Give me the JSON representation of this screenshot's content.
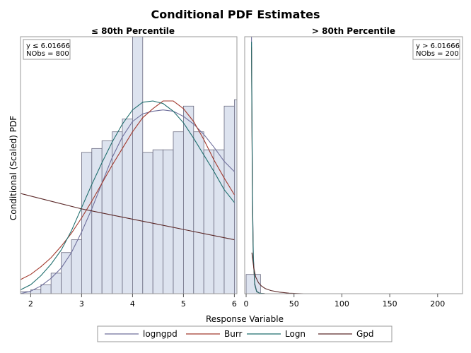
{
  "chart_data": {
    "type": "histogram-with-density-curves",
    "title": "Conditional PDF Estimates",
    "ylabel": "Conditional (Scaled) PDF",
    "xlabel": "Response Variable",
    "colors": {
      "logngpd": "#6f6f9c",
      "Burr": "#a23a2e",
      "Logn": "#1f6e6e",
      "Gpd": "#5c2a2a",
      "bar_fill": "#dde3ef",
      "bar_stroke": "#6b6b80"
    },
    "legend": {
      "position": "bottom",
      "entries": [
        {
          "name": "logngpd",
          "color": "#6f6f9c"
        },
        {
          "name": "Burr",
          "color": "#a23a2e"
        },
        {
          "name": "Logn",
          "color": "#1f6e6e"
        },
        {
          "name": "Gpd",
          "color": "#5c2a2a"
        }
      ]
    },
    "panels": [
      {
        "title": "≤ 80th Percentile",
        "inset": [
          "y ≤ 6.01666",
          "NObs = 800"
        ],
        "xlim": [
          1.8,
          6.05
        ],
        "ylim": [
          0,
          10
        ],
        "xticks": [
          2,
          3,
          4,
          5,
          6
        ],
        "bin_width": 0.2,
        "bins": [
          {
            "x": 1.9,
            "y": 0.08
          },
          {
            "x": 2.1,
            "y": 0.15
          },
          {
            "x": 2.3,
            "y": 0.35
          },
          {
            "x": 2.5,
            "y": 0.8
          },
          {
            "x": 2.7,
            "y": 1.6
          },
          {
            "x": 2.9,
            "y": 2.1
          },
          {
            "x": 3.1,
            "y": 5.5
          },
          {
            "x": 3.3,
            "y": 5.65
          },
          {
            "x": 3.5,
            "y": 5.95
          },
          {
            "x": 3.7,
            "y": 6.3
          },
          {
            "x": 3.9,
            "y": 6.8
          },
          {
            "x": 4.1,
            "y": 10.0
          },
          {
            "x": 4.3,
            "y": 5.5
          },
          {
            "x": 4.5,
            "y": 5.6
          },
          {
            "x": 4.7,
            "y": 5.6
          },
          {
            "x": 4.9,
            "y": 6.3
          },
          {
            "x": 5.1,
            "y": 7.3
          },
          {
            "x": 5.3,
            "y": 6.3
          },
          {
            "x": 5.5,
            "y": 5.6
          },
          {
            "x": 5.7,
            "y": 5.6
          },
          {
            "x": 5.9,
            "y": 7.3
          },
          {
            "x": 6.1,
            "y": 7.55
          }
        ],
        "curves": [
          {
            "name": "logngpd",
            "points": [
              [
                1.8,
                0.0
              ],
              [
                2.0,
                0.1
              ],
              [
                2.2,
                0.3
              ],
              [
                2.4,
                0.6
              ],
              [
                2.6,
                1.0
              ],
              [
                2.8,
                1.6
              ],
              [
                3.0,
                2.4
              ],
              [
                3.2,
                3.3
              ],
              [
                3.4,
                4.3
              ],
              [
                3.6,
                5.3
              ],
              [
                3.8,
                6.1
              ],
              [
                4.0,
                6.7
              ],
              [
                4.2,
                7.0
              ],
              [
                4.4,
                7.1
              ],
              [
                4.6,
                7.15
              ],
              [
                4.8,
                7.1
              ],
              [
                5.0,
                6.9
              ],
              [
                5.2,
                6.6
              ],
              [
                5.4,
                6.2
              ],
              [
                5.6,
                5.7
              ],
              [
                5.8,
                5.15
              ],
              [
                6.0,
                4.75
              ]
            ]
          },
          {
            "name": "Burr",
            "points": [
              [
                1.8,
                0.55
              ],
              [
                2.0,
                0.75
              ],
              [
                2.2,
                1.05
              ],
              [
                2.4,
                1.4
              ],
              [
                2.6,
                1.85
              ],
              [
                2.8,
                2.35
              ],
              [
                3.0,
                2.95
              ],
              [
                3.2,
                3.6
              ],
              [
                3.4,
                4.3
              ],
              [
                3.6,
                5.0
              ],
              [
                3.8,
                5.65
              ],
              [
                4.0,
                6.3
              ],
              [
                4.2,
                6.85
              ],
              [
                4.4,
                7.2
              ],
              [
                4.6,
                7.5
              ],
              [
                4.8,
                7.5
              ],
              [
                5.0,
                7.2
              ],
              [
                5.2,
                6.7
              ],
              [
                5.4,
                6.0
              ],
              [
                5.6,
                5.2
              ],
              [
                5.8,
                4.5
              ],
              [
                6.0,
                3.85
              ]
            ]
          },
          {
            "name": "Logn",
            "points": [
              [
                1.8,
                0.15
              ],
              [
                2.0,
                0.35
              ],
              [
                2.2,
                0.7
              ],
              [
                2.4,
                1.15
              ],
              [
                2.6,
                1.7
              ],
              [
                2.8,
                2.45
              ],
              [
                3.0,
                3.35
              ],
              [
                3.2,
                4.25
              ],
              [
                3.4,
                5.1
              ],
              [
                3.6,
                5.9
              ],
              [
                3.8,
                6.6
              ],
              [
                4.0,
                7.15
              ],
              [
                4.2,
                7.45
              ],
              [
                4.4,
                7.5
              ],
              [
                4.6,
                7.4
              ],
              [
                4.8,
                7.1
              ],
              [
                5.0,
                6.65
              ],
              [
                5.2,
                6.05
              ],
              [
                5.4,
                5.4
              ],
              [
                5.6,
                4.75
              ],
              [
                5.8,
                4.05
              ],
              [
                6.0,
                3.55
              ]
            ]
          },
          {
            "name": "Gpd",
            "points": [
              [
                1.8,
                3.9
              ],
              [
                2.5,
                3.55
              ],
              [
                3.0,
                3.3
              ],
              [
                3.5,
                3.1
              ],
              [
                4.0,
                2.9
              ],
              [
                4.5,
                2.7
              ],
              [
                5.0,
                2.5
              ],
              [
                5.5,
                2.3
              ],
              [
                6.0,
                2.1
              ]
            ]
          }
        ]
      },
      {
        "title": "> 80th Percentile",
        "inset": [
          "y > 6.01666",
          "NObs = 200"
        ],
        "xlim": [
          -1.5,
          226
        ],
        "ylim": [
          0,
          10
        ],
        "xticks": [
          0,
          50,
          100,
          150,
          200
        ],
        "bin_width": 15,
        "bins": [
          {
            "x": 7.5,
            "y": 0.75
          }
        ],
        "curves": [
          {
            "name": "logngpd",
            "points": [
              [
                5.6,
                10.0
              ],
              [
                6.0,
                7.5
              ],
              [
                6.6,
                4.0
              ],
              [
                7.5,
                1.5
              ],
              [
                9,
                0.4
              ],
              [
                11,
                0.1
              ],
              [
                14,
                0.02
              ],
              [
                20,
                0.0
              ],
              [
                226,
                0.0
              ]
            ]
          },
          {
            "name": "Burr",
            "points": [
              [
                5.6,
                9.6
              ],
              [
                6.0,
                7.0
              ],
              [
                6.6,
                3.6
              ],
              [
                7.5,
                1.3
              ],
              [
                9,
                0.35
              ],
              [
                11,
                0.08
              ],
              [
                14,
                0.02
              ],
              [
                20,
                0.0
              ],
              [
                226,
                0.0
              ]
            ]
          },
          {
            "name": "Logn",
            "points": [
              [
                5.6,
                9.8
              ],
              [
                6.0,
                7.2
              ],
              [
                6.6,
                3.8
              ],
              [
                7.5,
                1.4
              ],
              [
                9,
                0.35
              ],
              [
                11,
                0.08
              ],
              [
                14,
                0.02
              ],
              [
                20,
                0.0
              ],
              [
                226,
                0.0
              ]
            ]
          },
          {
            "name": "Gpd",
            "points": [
              [
                6.0,
                1.6
              ],
              [
                8,
                1.0
              ],
              [
                10,
                0.65
              ],
              [
                13,
                0.42
              ],
              [
                16,
                0.3
              ],
              [
                20,
                0.2
              ],
              [
                26,
                0.12
              ],
              [
                35,
                0.06
              ],
              [
                45,
                0.02
              ],
              [
                60,
                0.0
              ],
              [
                226,
                0.0
              ]
            ]
          }
        ]
      }
    ]
  }
}
